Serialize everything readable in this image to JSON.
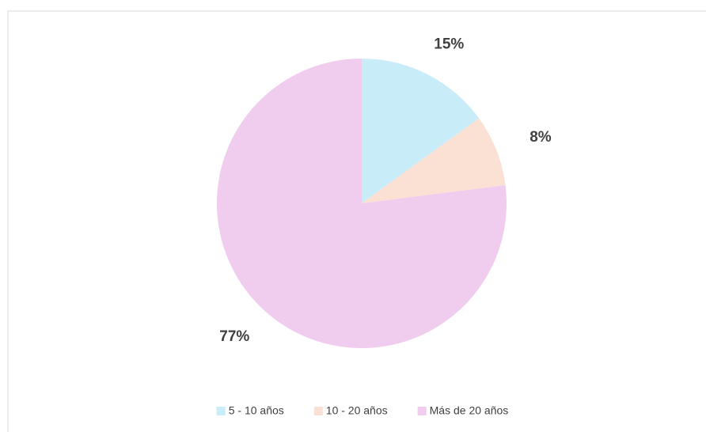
{
  "chart_data": {
    "type": "pie",
    "categories": [
      "5 - 10 años",
      "10 - 20 años",
      "Más de 20 años"
    ],
    "values": [
      15,
      8,
      77
    ],
    "value_labels": [
      "15%",
      "8%",
      "77%"
    ],
    "colors": [
      "#c9ecf9",
      "#fbe1d3",
      "#f0cdee"
    ],
    "legend": "bottom"
  }
}
